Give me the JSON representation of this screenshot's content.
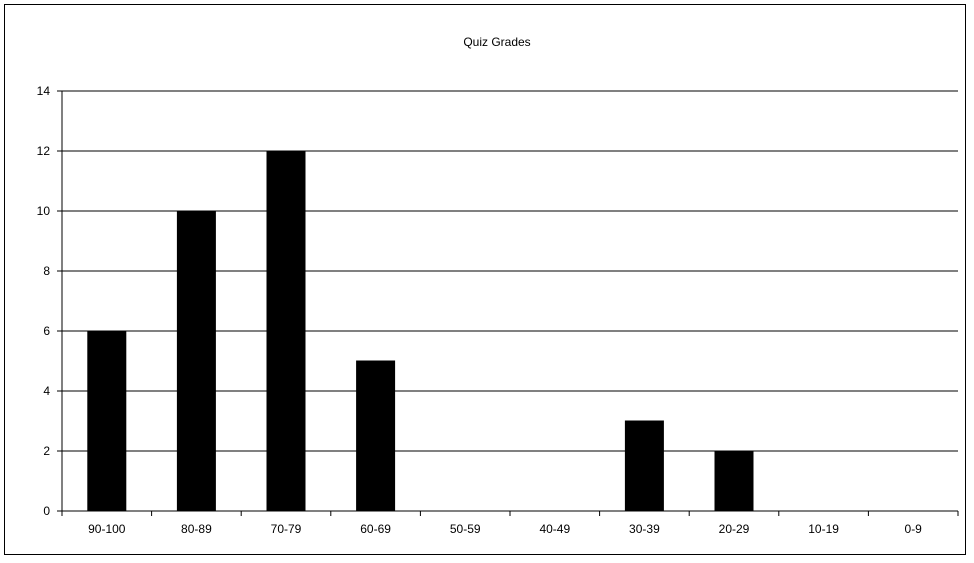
{
  "chart_data": {
    "type": "bar",
    "title": "Quiz Grades",
    "xlabel": "",
    "ylabel": "",
    "categories": [
      "90-100",
      "80-89",
      "70-79",
      "60-69",
      "50-59",
      "40-49",
      "30-39",
      "20-29",
      "10-19",
      "0-9"
    ],
    "values": [
      6,
      10,
      12,
      5,
      0,
      0,
      3,
      2,
      0,
      0
    ],
    "ylim": [
      0,
      14
    ],
    "yticks": [
      "0",
      "2",
      "4",
      "6",
      "8",
      "10",
      "12",
      "14"
    ],
    "grid": true,
    "legend": "none",
    "colors": {
      "bar": "#000000",
      "grid": "#000000",
      "background": "#ffffff"
    }
  }
}
